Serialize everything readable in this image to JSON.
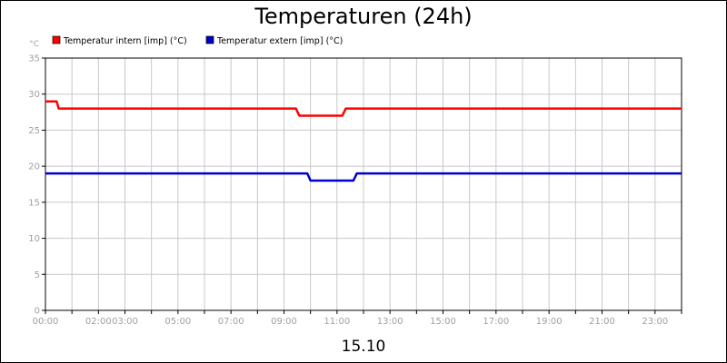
{
  "chart_data": {
    "type": "line",
    "title": "Temperaturen (24h)",
    "xlabel": "15.10",
    "ylabel": "°C",
    "ylim": [
      0,
      35
    ],
    "xlim": [
      0,
      24
    ],
    "grid": true,
    "legend_position": "top-left",
    "y_ticks": [
      "0",
      "5",
      "10",
      "15",
      "20",
      "25",
      "30",
      "35"
    ],
    "x_ticks": [
      {
        "x": 0,
        "label": "00:00"
      },
      {
        "x": 2,
        "label": "02:00"
      },
      {
        "x": 3,
        "label": "03:00"
      },
      {
        "x": 5,
        "label": "05:00"
      },
      {
        "x": 7,
        "label": "07:00"
      },
      {
        "x": 9,
        "label": "09:00"
      },
      {
        "x": 11,
        "label": "11:00"
      },
      {
        "x": 13,
        "label": "13:00"
      },
      {
        "x": 15,
        "label": "15:00"
      },
      {
        "x": 17,
        "label": "17:00"
      },
      {
        "x": 19,
        "label": "19:00"
      },
      {
        "x": 21,
        "label": "21:00"
      },
      {
        "x": 23,
        "label": "23:00"
      }
    ],
    "series": [
      {
        "name": "Temperatur intern [imp] (°C)",
        "color": "#ff0000",
        "x": [
          0,
          0.42,
          0.5,
          9.45,
          9.58,
          11.2,
          11.33,
          24
        ],
        "y": [
          29,
          29,
          28,
          28,
          27,
          27,
          28,
          28
        ]
      },
      {
        "name": "Temperatur extern [imp] (°C)",
        "color": "#0000cc",
        "x": [
          0,
          9.88,
          10.0,
          11.62,
          11.75,
          24
        ],
        "y": [
          19,
          19,
          18,
          18,
          19,
          19
        ]
      }
    ]
  }
}
